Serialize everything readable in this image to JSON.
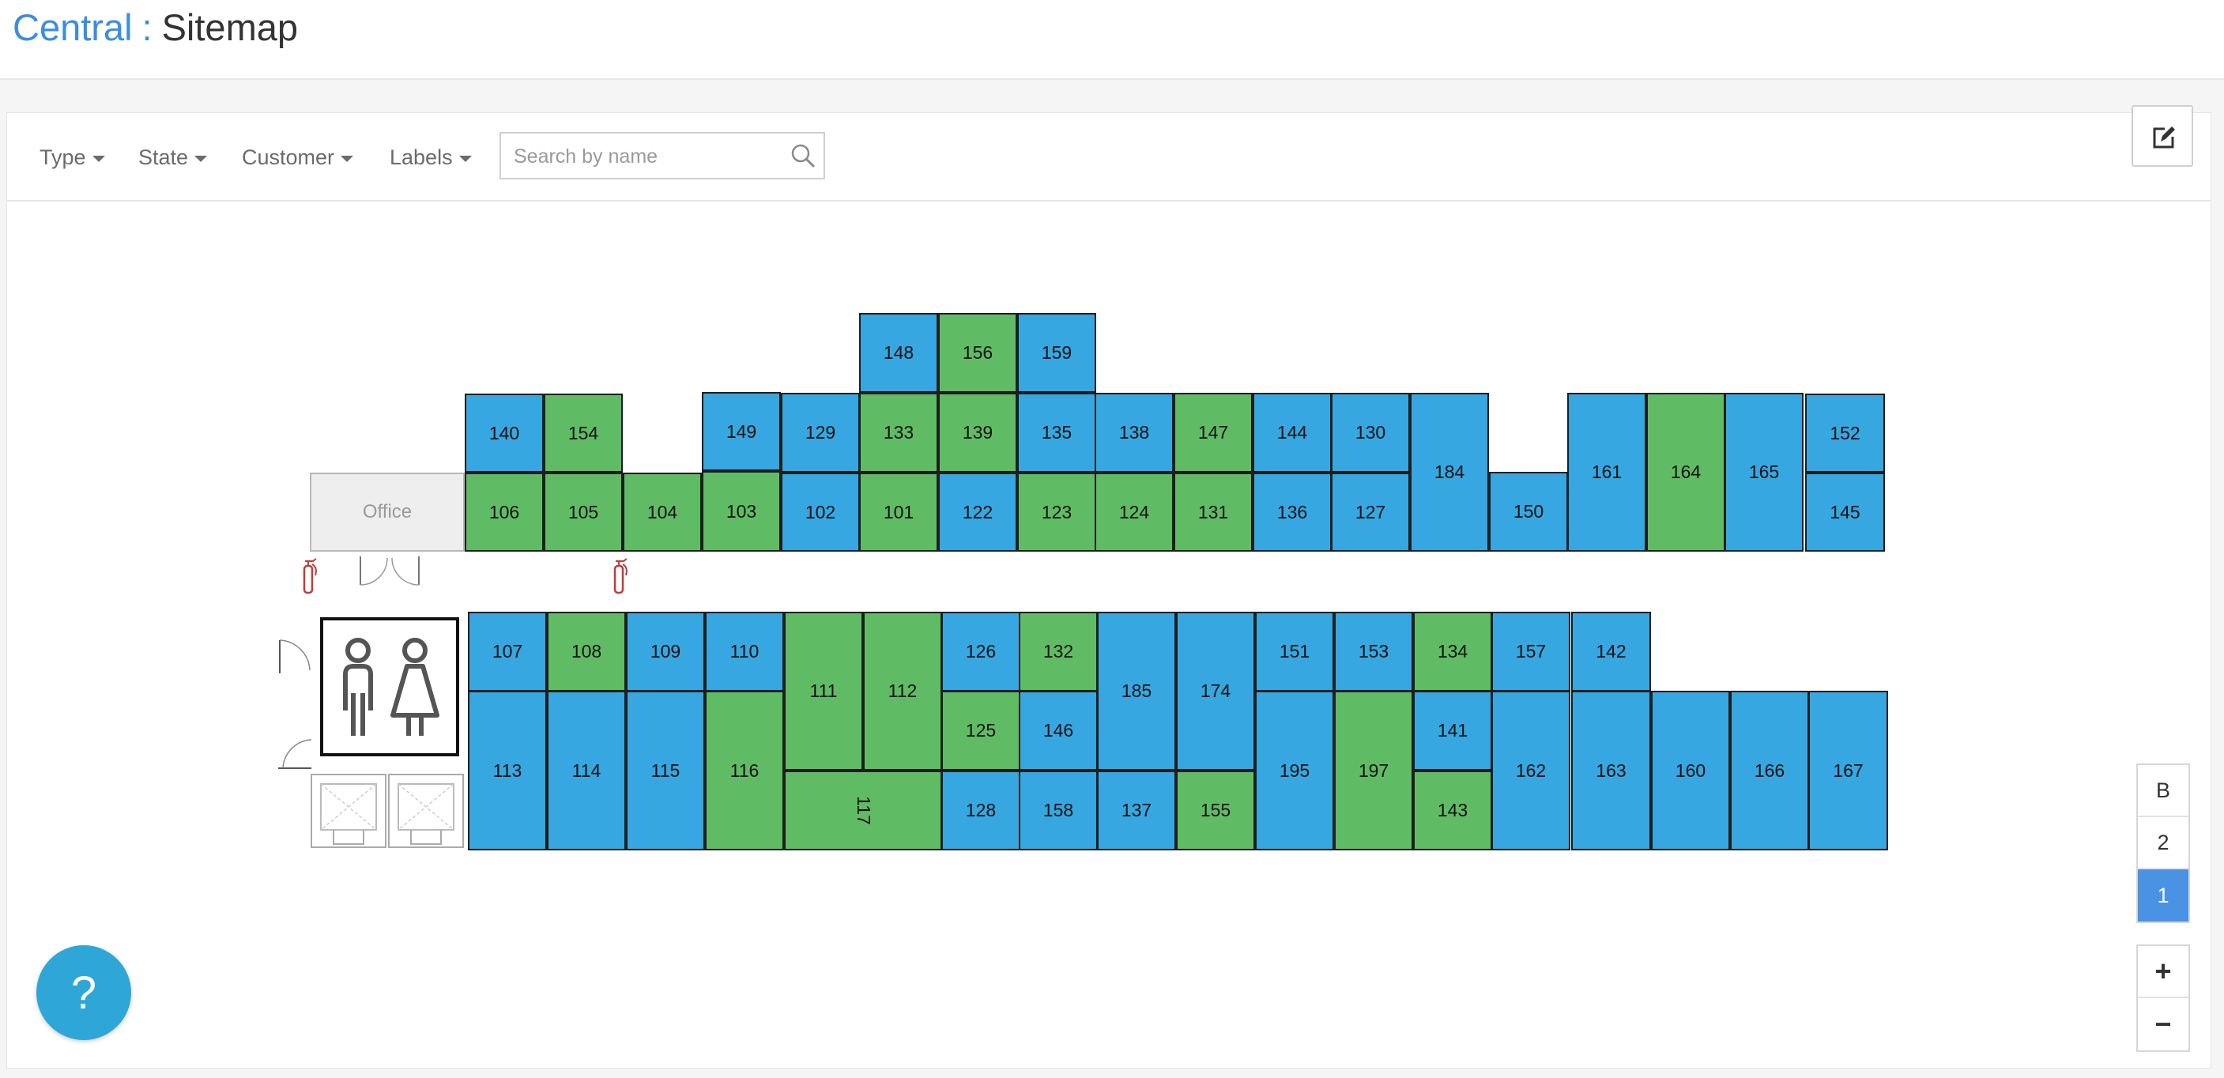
{
  "header": {
    "brand": "Central",
    "separator": ":",
    "page": "Sitemap"
  },
  "toolbar": {
    "filters": [
      {
        "label": "Type"
      },
      {
        "label": "State"
      },
      {
        "label": "Customer"
      },
      {
        "label": "Labels"
      }
    ],
    "search_placeholder": "Search by name",
    "refresh_icon": "refresh-icon",
    "edit_icon": "edit-icon"
  },
  "colors": {
    "occupied": "#36a7e1",
    "available": "#60bc64",
    "active_floor": "#4a92e4"
  },
  "office": {
    "label": "Office"
  },
  "units": [
    {
      "label": "148",
      "status": "occupied"
    },
    {
      "label": "156",
      "status": "available"
    },
    {
      "label": "159",
      "status": "occupied"
    },
    {
      "label": "140",
      "status": "occupied"
    },
    {
      "label": "154",
      "status": "available"
    },
    {
      "label": "149",
      "status": "occupied"
    },
    {
      "label": "129",
      "status": "occupied"
    },
    {
      "label": "133",
      "status": "available"
    },
    {
      "label": "139",
      "status": "available"
    },
    {
      "label": "135",
      "status": "occupied"
    },
    {
      "label": "138",
      "status": "occupied"
    },
    {
      "label": "147",
      "status": "available"
    },
    {
      "label": "144",
      "status": "occupied"
    },
    {
      "label": "130",
      "status": "occupied"
    },
    {
      "label": "184",
      "status": "occupied"
    },
    {
      "label": "161",
      "status": "occupied"
    },
    {
      "label": "164",
      "status": "available"
    },
    {
      "label": "165",
      "status": "occupied"
    },
    {
      "label": "152",
      "status": "occupied"
    },
    {
      "label": "106",
      "status": "available"
    },
    {
      "label": "105",
      "status": "available"
    },
    {
      "label": "104",
      "status": "available"
    },
    {
      "label": "103",
      "status": "available"
    },
    {
      "label": "102",
      "status": "occupied"
    },
    {
      "label": "101",
      "status": "available"
    },
    {
      "label": "122",
      "status": "occupied"
    },
    {
      "label": "123",
      "status": "available"
    },
    {
      "label": "124",
      "status": "available"
    },
    {
      "label": "131",
      "status": "available"
    },
    {
      "label": "136",
      "status": "occupied"
    },
    {
      "label": "127",
      "status": "occupied"
    },
    {
      "label": "150",
      "status": "occupied"
    },
    {
      "label": "145",
      "status": "occupied"
    },
    {
      "label": "107",
      "status": "occupied"
    },
    {
      "label": "108",
      "status": "available"
    },
    {
      "label": "109",
      "status": "occupied"
    },
    {
      "label": "110",
      "status": "occupied"
    },
    {
      "label": "111",
      "status": "available"
    },
    {
      "label": "112",
      "status": "available"
    },
    {
      "label": "126",
      "status": "occupied"
    },
    {
      "label": "132",
      "status": "available"
    },
    {
      "label": "185",
      "status": "occupied"
    },
    {
      "label": "174",
      "status": "occupied"
    },
    {
      "label": "151",
      "status": "occupied"
    },
    {
      "label": "153",
      "status": "occupied"
    },
    {
      "label": "134",
      "status": "available"
    },
    {
      "label": "157",
      "status": "occupied"
    },
    {
      "label": "142",
      "status": "occupied"
    },
    {
      "label": "113",
      "status": "occupied"
    },
    {
      "label": "114",
      "status": "occupied"
    },
    {
      "label": "115",
      "status": "occupied"
    },
    {
      "label": "116",
      "status": "available"
    },
    {
      "label": "125",
      "status": "available"
    },
    {
      "label": "146",
      "status": "occupied"
    },
    {
      "label": "195",
      "status": "occupied"
    },
    {
      "label": "197",
      "status": "available"
    },
    {
      "label": "141",
      "status": "occupied"
    },
    {
      "label": "162",
      "status": "occupied"
    },
    {
      "label": "163",
      "status": "occupied"
    },
    {
      "label": "160",
      "status": "occupied"
    },
    {
      "label": "166",
      "status": "occupied"
    },
    {
      "label": "167",
      "status": "occupied"
    },
    {
      "label": "117",
      "status": "available"
    },
    {
      "label": "128",
      "status": "occupied"
    },
    {
      "label": "158",
      "status": "occupied"
    },
    {
      "label": "137",
      "status": "occupied"
    },
    {
      "label": "155",
      "status": "available"
    },
    {
      "label": "143",
      "status": "available"
    }
  ],
  "floors": [
    {
      "label": "B",
      "active": false
    },
    {
      "label": "2",
      "active": false
    },
    {
      "label": "1",
      "active": true
    }
  ],
  "zoom": {
    "in_label": "+",
    "out_label": "−"
  },
  "help": {
    "label": "?"
  }
}
